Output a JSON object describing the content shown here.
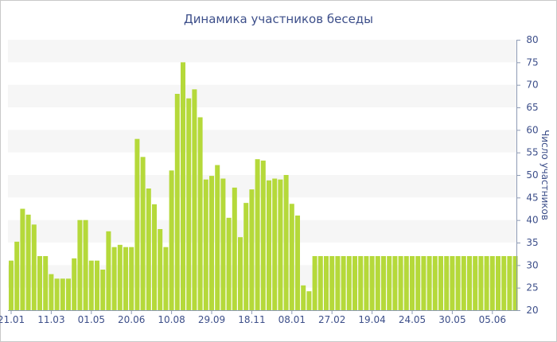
{
  "chart_data": {
    "type": "bar",
    "title": "Динамика участников беседы",
    "xlabel": "",
    "ylabel": "Число участников",
    "ylim": [
      20,
      80
    ],
    "y_ticks": [
      20,
      25,
      30,
      35,
      40,
      45,
      50,
      55,
      60,
      65,
      70,
      75,
      80
    ],
    "y_axis_side": "right",
    "grid": "alternating horizontal bands",
    "bar_color": "#b5d93a",
    "band_color": "#f6f6f6",
    "axis_color": "#8e9bb5",
    "text_color": "#3d4f8a",
    "x_tick_labels": [
      {
        "label": "21.01",
        "index": 0
      },
      {
        "label": "11.03",
        "index": 7
      },
      {
        "label": "01.05",
        "index": 14
      },
      {
        "label": "20.06",
        "index": 21
      },
      {
        "label": "10.08",
        "index": 28
      },
      {
        "label": "29.09",
        "index": 35
      },
      {
        "label": "18.11",
        "index": 42
      },
      {
        "label": "08.01",
        "index": 49
      },
      {
        "label": "27.02",
        "index": 56
      },
      {
        "label": "19.04",
        "index": 63
      },
      {
        "label": "24.05",
        "index": 70
      },
      {
        "label": "30.05",
        "index": 77
      },
      {
        "label": "05.06",
        "index": 84
      }
    ],
    "values": [
      31,
      35.2,
      42.5,
      41.2,
      39,
      32,
      32,
      28,
      27,
      27,
      27,
      31.5,
      40,
      40,
      31,
      31,
      29,
      37.5,
      34,
      34.5,
      34,
      34,
      58,
      54,
      47,
      43.5,
      38,
      34,
      51,
      68,
      75,
      67,
      69,
      62.8,
      49,
      49.8,
      52.2,
      49.2,
      40.5,
      47.2,
      36.2,
      43.8,
      46.8,
      53.5,
      53.2,
      48.8,
      49.2,
      49,
      50,
      43.6,
      41,
      25.5,
      24.2,
      32,
      32,
      32,
      32,
      32,
      32,
      32,
      32,
      32,
      32,
      32,
      32,
      32,
      32,
      32,
      32,
      32,
      32,
      32,
      32,
      32,
      32,
      32,
      32,
      32,
      32,
      32,
      32,
      32,
      32,
      32,
      32,
      32,
      32,
      32,
      32
    ]
  }
}
